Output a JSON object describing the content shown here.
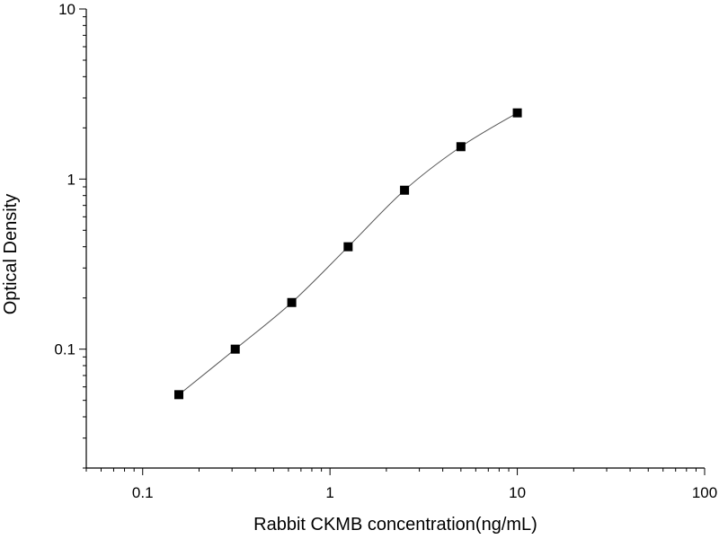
{
  "chart_data": {
    "type": "scatter",
    "xlabel": "Rabbit CKMB concentration(ng/mL)",
    "ylabel": "Optical Density",
    "x_scale": "log",
    "y_scale": "log",
    "xlim": [
      0.05,
      100
    ],
    "ylim": [
      0.02,
      10
    ],
    "x_ticks": [
      "0.1",
      "1",
      "10",
      "100"
    ],
    "y_ticks": [
      "0.1",
      "1",
      "10"
    ],
    "grid": false,
    "legend": "none",
    "series": [
      {
        "x": [
          0.156,
          0.312,
          0.625,
          1.25,
          2.5,
          5,
          10
        ],
        "y": [
          0.054,
          0.1,
          0.188,
          0.4,
          0.86,
          1.55,
          2.45
        ],
        "marker": "square",
        "fit": "smooth curve"
      }
    ],
    "colors": {
      "marker": "#000000",
      "curve": "#555555",
      "axis": "#000000"
    }
  }
}
